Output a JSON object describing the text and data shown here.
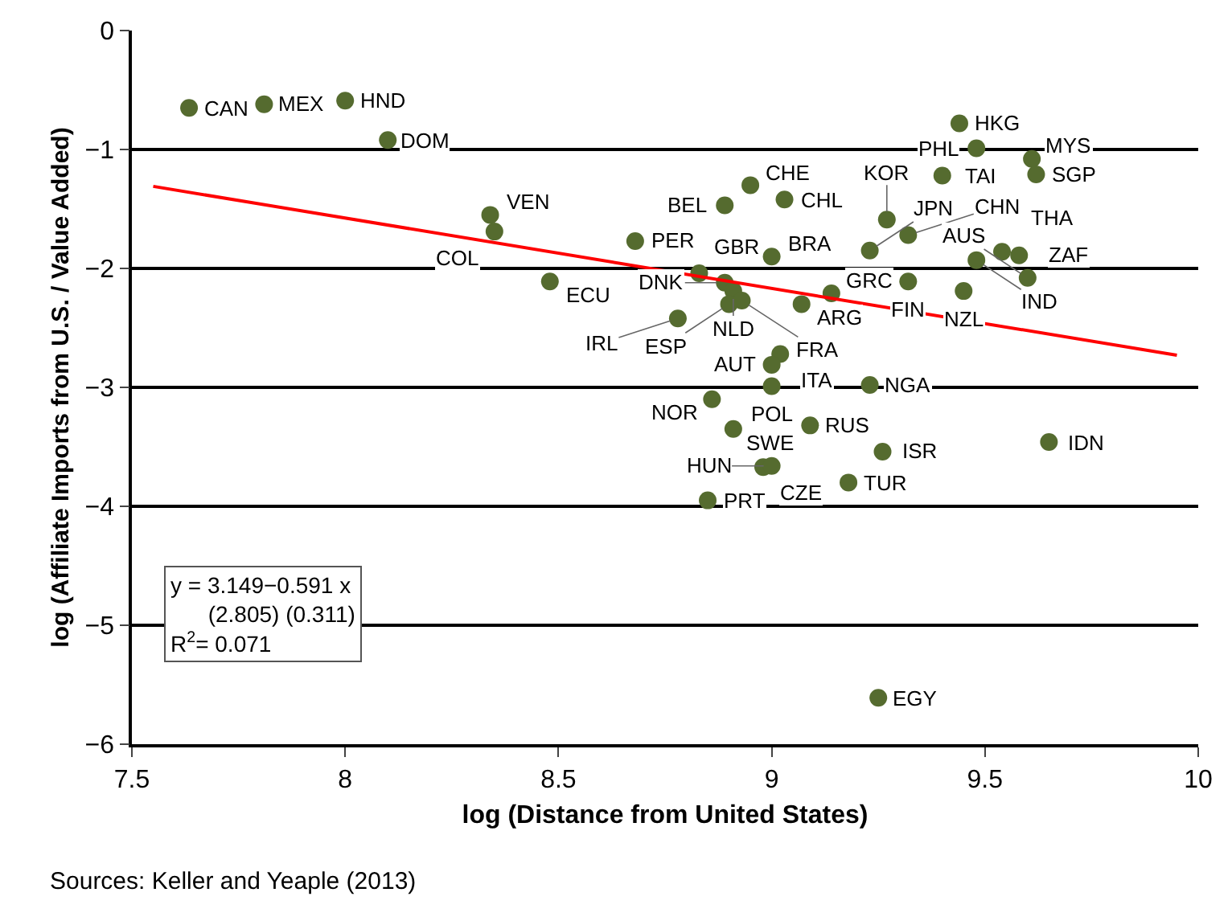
{
  "chart_data": {
    "type": "scatter",
    "xlabel": "log (Distance from United States)",
    "ylabel": "log (Affiliate Imports from U.S. / Value Added)",
    "xlim": [
      7.5,
      10
    ],
    "xticks": [
      7.5,
      8,
      8.5,
      9,
      9.5,
      10
    ],
    "ylim": [
      -6,
      0
    ],
    "yticks": [
      {
        "value": -6,
        "label": "−6"
      },
      {
        "value": -5,
        "label": "−5"
      },
      {
        "value": -4,
        "label": "−4"
      },
      {
        "value": -3,
        "label": "−3"
      },
      {
        "value": -2,
        "label": "−2"
      },
      {
        "value": -1,
        "label": "−1"
      },
      0
    ],
    "grid": "y",
    "series": [
      {
        "type": "scatter",
        "color": "#556b2f",
        "marker": "circle",
        "x": [
          7.634,
          7.81,
          8.0,
          8.1,
          8.34,
          8.35,
          8.48,
          8.68,
          8.95,
          8.89,
          9.03,
          9.0,
          8.83,
          8.89,
          8.91,
          8.9,
          8.93,
          9.07,
          9.14,
          8.78,
          9.02,
          9.0,
          9.0,
          8.86,
          8.91,
          9.09,
          8.98,
          9.0,
          9.26,
          9.18,
          8.85,
          9.23,
          9.25,
          9.65,
          9.23,
          9.27,
          9.32,
          9.32,
          9.44,
          9.48,
          9.4,
          9.61,
          9.62,
          9.48,
          9.54,
          9.58,
          9.6,
          9.45
        ],
        "values": [
          -0.65,
          -0.62,
          -0.59,
          -0.92,
          -1.55,
          -1.69,
          -2.11,
          -1.77,
          -1.3,
          -1.47,
          -1.42,
          -1.9,
          -2.04,
          -2.12,
          -2.19,
          -2.3,
          -2.27,
          -2.3,
          -2.21,
          -2.42,
          -2.72,
          -2.81,
          -2.99,
          -3.1,
          -3.35,
          -3.32,
          -3.67,
          -3.66,
          -3.54,
          -3.8,
          -3.95,
          -2.98,
          -5.61,
          -3.46,
          -1.85,
          -1.59,
          -1.72,
          -2.11,
          -0.78,
          -0.99,
          -1.22,
          -1.08,
          -1.21,
          -1.93,
          -1.86,
          -1.89,
          -2.08,
          -2.19
        ]
      },
      {
        "type": "line",
        "color": "#ff0000",
        "line_style": "solid",
        "x": [
          7.55,
          9.95
        ],
        "values": [
          -1.31,
          -2.73
        ]
      }
    ],
    "annotations": [
      "y = 3.149−0.591 x\n      (2.805) (0.311)\nR$^{2}$= 0.071",
      "Sources: Keller and Yeaple (2013)",
      {
        "text": "CAN",
        "x": 7.634,
        "y": -0.65
      },
      {
        "text": "MEX",
        "x": 7.81,
        "y": -0.62
      },
      {
        "text": "HND",
        "x": 8.0,
        "y": -0.59
      },
      {
        "text": "DOM",
        "x": 8.1,
        "y": -0.92
      },
      {
        "text": "VEN",
        "x": 8.34,
        "y": -1.55
      },
      {
        "text": "COL",
        "x": 8.35,
        "y": -1.69
      },
      {
        "text": "ECU",
        "x": 8.48,
        "y": -2.11
      },
      {
        "text": "PER",
        "x": 8.68,
        "y": -1.77
      },
      {
        "text": "CHE",
        "x": 8.95,
        "y": -1.3
      },
      {
        "text": "BEL",
        "x": 8.89,
        "y": -1.47
      },
      {
        "text": "CHL",
        "x": 9.03,
        "y": -1.42
      },
      {
        "text": "BRA",
        "x": 9.0,
        "y": -1.9
      },
      {
        "text": "GBR",
        "x": 8.83,
        "y": -2.04
      },
      {
        "text": "DNK",
        "x": 8.89,
        "y": -2.12
      },
      {
        "text": "NLD",
        "x": 8.91,
        "y": -2.19
      },
      {
        "text": "ESP",
        "x": 8.9,
        "y": -2.3
      },
      {
        "text": "FRA",
        "x": 8.93,
        "y": -2.27
      },
      {
        "text": "ARG",
        "x": 9.07,
        "y": -2.3
      },
      {
        "text": "GRC",
        "x": 9.14,
        "y": -2.21
      },
      {
        "text": "IRL",
        "x": 8.78,
        "y": -2.42
      },
      {
        "text": "ITA",
        "x": 9.02,
        "y": -2.72
      },
      {
        "text": "AUT",
        "x": 9.0,
        "y": -2.81
      },
      {
        "text": "POL",
        "x": 9.0,
        "y": -2.99
      },
      {
        "text": "NOR",
        "x": 8.86,
        "y": -3.1
      },
      {
        "text": "SWE",
        "x": 8.91,
        "y": -3.35
      },
      {
        "text": "RUS",
        "x": 9.09,
        "y": -3.32
      },
      {
        "text": "CZE",
        "x": 8.98,
        "y": -3.67
      },
      {
        "text": "HUN",
        "x": 9.0,
        "y": -3.66
      },
      {
        "text": "ISR",
        "x": 9.26,
        "y": -3.54
      },
      {
        "text": "TUR",
        "x": 9.18,
        "y": -3.8
      },
      {
        "text": "PRT",
        "x": 8.85,
        "y": -3.95
      },
      {
        "text": "NGA",
        "x": 9.23,
        "y": -2.98
      },
      {
        "text": "EGY",
        "x": 9.25,
        "y": -5.61
      },
      {
        "text": "IDN",
        "x": 9.65,
        "y": -3.46
      },
      {
        "text": "JPN",
        "x": 9.23,
        "y": -1.85
      },
      {
        "text": "KOR",
        "x": 9.27,
        "y": -1.59
      },
      {
        "text": "CHN",
        "x": 9.32,
        "y": -1.72
      },
      {
        "text": "FIN",
        "x": 9.32,
        "y": -2.11
      },
      {
        "text": "HKG",
        "x": 9.44,
        "y": -0.78
      },
      {
        "text": "PHL",
        "x": 9.48,
        "y": -0.99
      },
      {
        "text": "TAI",
        "x": 9.4,
        "y": -1.22
      },
      {
        "text": "MYS",
        "x": 9.61,
        "y": -1.08
      },
      {
        "text": "SGP",
        "x": 9.62,
        "y": -1.21
      },
      {
        "text": "IND",
        "x": 9.48,
        "y": -1.93
      },
      {
        "text": "THA",
        "x": 9.54,
        "y": -1.86
      },
      {
        "text": "ZAF",
        "x": 9.58,
        "y": -1.89
      },
      {
        "text": "AUS",
        "x": 9.6,
        "y": -2.08
      },
      {
        "text": "NZL",
        "x": 9.45,
        "y": -2.19
      }
    ]
  }
}
